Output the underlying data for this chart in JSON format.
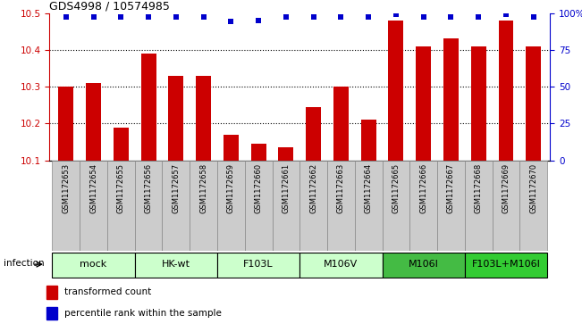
{
  "title": "GDS4998 / 10574985",
  "samples": [
    "GSM1172653",
    "GSM1172654",
    "GSM1172655",
    "GSM1172656",
    "GSM1172657",
    "GSM1172658",
    "GSM1172659",
    "GSM1172660",
    "GSM1172661",
    "GSM1172662",
    "GSM1172663",
    "GSM1172664",
    "GSM1172665",
    "GSM1172666",
    "GSM1172667",
    "GSM1172668",
    "GSM1172669",
    "GSM1172670"
  ],
  "bar_values": [
    10.3,
    10.31,
    10.19,
    10.39,
    10.33,
    10.33,
    10.17,
    10.145,
    10.135,
    10.245,
    10.3,
    10.21,
    10.48,
    10.41,
    10.43,
    10.41,
    10.48,
    10.41
  ],
  "percentile_values": [
    97,
    97,
    97,
    97,
    97,
    97,
    94,
    95,
    97,
    97,
    97,
    97,
    99,
    97,
    97,
    97,
    99,
    97
  ],
  "group_configs": [
    {
      "indices": [
        0,
        1,
        2
      ],
      "label": "mock",
      "color": "#ccffcc"
    },
    {
      "indices": [
        3,
        4,
        5
      ],
      "label": "HK-wt",
      "color": "#ccffcc"
    },
    {
      "indices": [
        6,
        7,
        8
      ],
      "label": "F103L",
      "color": "#ccffcc"
    },
    {
      "indices": [
        9,
        10,
        11
      ],
      "label": "M106V",
      "color": "#ccffcc"
    },
    {
      "indices": [
        12,
        13,
        14
      ],
      "label": "M106I",
      "color": "#44bb44"
    },
    {
      "indices": [
        15,
        16,
        17
      ],
      "label": "F103L+M106I",
      "color": "#33cc33"
    }
  ],
  "bar_color": "#cc0000",
  "dot_color": "#0000cc",
  "ylim_left": [
    10.1,
    10.5
  ],
  "ylim_right": [
    0,
    100
  ],
  "yticks_left": [
    10.1,
    10.2,
    10.3,
    10.4,
    10.5
  ],
  "yticks_right": [
    0,
    25,
    50,
    75,
    100
  ],
  "ytick_labels_right": [
    "0",
    "25",
    "50",
    "75",
    "100%"
  ],
  "grid_yticks": [
    10.2,
    10.3,
    10.4
  ],
  "legend_items": [
    {
      "label": "transformed count",
      "color": "#cc0000"
    },
    {
      "label": "percentile rank within the sample",
      "color": "#0000cc"
    }
  ],
  "infection_label": "infection",
  "sample_bg_color": "#cccccc",
  "title_fontsize": 9,
  "label_fontsize": 7,
  "group_fontsize": 8
}
